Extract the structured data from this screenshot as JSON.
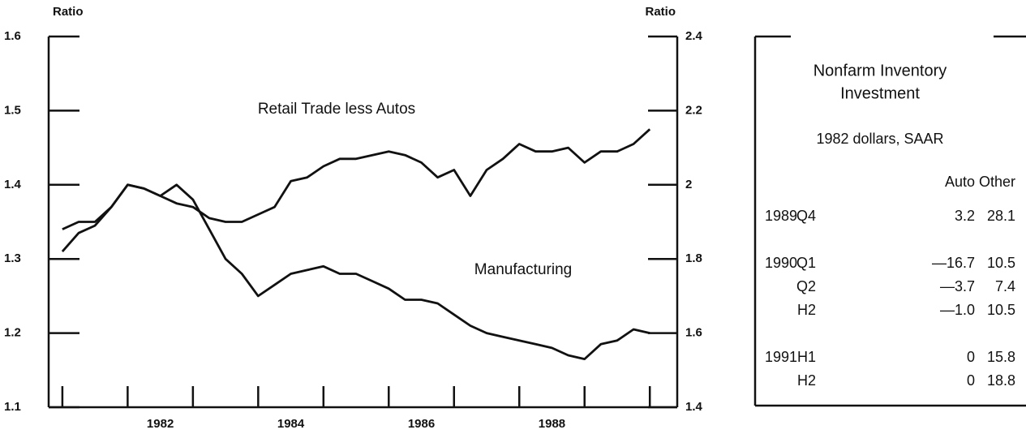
{
  "chart_data": {
    "type": "line",
    "y_label": "Ratio",
    "y2_label": "Ratio",
    "annotations": [
      "Retail Trade less Autos",
      "Manufacturing"
    ],
    "x": [
      1981.0,
      1981.25,
      1981.5,
      1981.75,
      1982.0,
      1982.25,
      1982.5,
      1982.75,
      1983.0,
      1983.25,
      1983.5,
      1983.75,
      1984.0,
      1984.25,
      1984.5,
      1984.75,
      1985.0,
      1985.25,
      1985.5,
      1985.75,
      1986.0,
      1986.25,
      1986.5,
      1986.75,
      1987.0,
      1987.25,
      1987.5,
      1987.75,
      1988.0,
      1988.25,
      1988.5,
      1988.75,
      1989.0,
      1989.25,
      1989.5,
      1989.75,
      1990.0
    ],
    "series": [
      {
        "name": "Retail Trade less Autos",
        "color": "#111111",
        "axis": "y",
        "values": [
          1.34,
          1.35,
          1.35,
          1.37,
          1.4,
          1.395,
          1.385,
          1.375,
          1.37,
          1.355,
          1.35,
          1.35,
          1.36,
          1.37,
          1.405,
          1.41,
          1.425,
          1.435,
          1.435,
          1.44,
          1.445,
          1.44,
          1.43,
          1.41,
          1.42,
          1.385,
          1.42,
          1.435,
          1.455,
          1.445,
          1.445,
          1.45,
          1.43,
          1.445,
          1.445,
          1.455,
          1.475
        ]
      },
      {
        "name": "Manufacturing",
        "color": "#111111",
        "axis": "y2",
        "values": [
          1.82,
          1.87,
          1.89,
          1.94,
          2.0,
          1.99,
          1.97,
          2.0,
          1.96,
          1.88,
          1.8,
          1.76,
          1.7,
          1.73,
          1.76,
          1.77,
          1.78,
          1.76,
          1.76,
          1.74,
          1.72,
          1.69,
          1.69,
          1.68,
          1.65,
          1.62,
          1.6,
          1.59,
          1.58,
          1.57,
          1.56,
          1.54,
          1.53,
          1.57,
          1.58,
          1.61,
          1.6
        ]
      }
    ],
    "xlim": [
      1980.79,
      1990.42
    ],
    "xticks": [
      1981,
      1982,
      1983,
      1984,
      1985,
      1986,
      1987,
      1988,
      1989,
      1990
    ],
    "xlabels": [
      {
        "value": 1982.5,
        "label": "1982"
      },
      {
        "value": 1984.5,
        "label": "1984"
      },
      {
        "value": 1986.5,
        "label": "1986"
      },
      {
        "value": 1988.5,
        "label": "1988"
      }
    ],
    "ylim": [
      1.1,
      1.6
    ],
    "yticks": [
      1.1,
      1.2,
      1.3,
      1.4,
      1.5,
      1.6
    ],
    "y2lim": [
      1.4,
      2.4
    ],
    "y2ticks": [
      1.4,
      1.6,
      1.8,
      2,
      2.2,
      2.4
    ]
  },
  "table": {
    "title": [
      "Nonfarm Inventory",
      "Investment"
    ],
    "subtitle": "1982 dollars, SAAR",
    "columns": [
      "Auto",
      "Other"
    ],
    "groups": [
      {
        "year": "1989",
        "rows": [
          {
            "period": "Q4",
            "cells": [
              "3.2",
              "28.1"
            ]
          }
        ]
      },
      {
        "year": "1990",
        "rows": [
          {
            "period": "Q1",
            "cells": [
              "—16.7",
              "10.5"
            ]
          },
          {
            "period": "Q2",
            "cells": [
              "—3.7",
              "7.4"
            ]
          },
          {
            "period": "H2",
            "cells": [
              "—1.0",
              "10.5"
            ]
          }
        ]
      },
      {
        "year": "1991",
        "rows": [
          {
            "period": "H1",
            "cells": [
              "0",
              "15.8"
            ]
          },
          {
            "period": "H2",
            "cells": [
              "0",
              "18.8"
            ]
          }
        ]
      }
    ]
  }
}
